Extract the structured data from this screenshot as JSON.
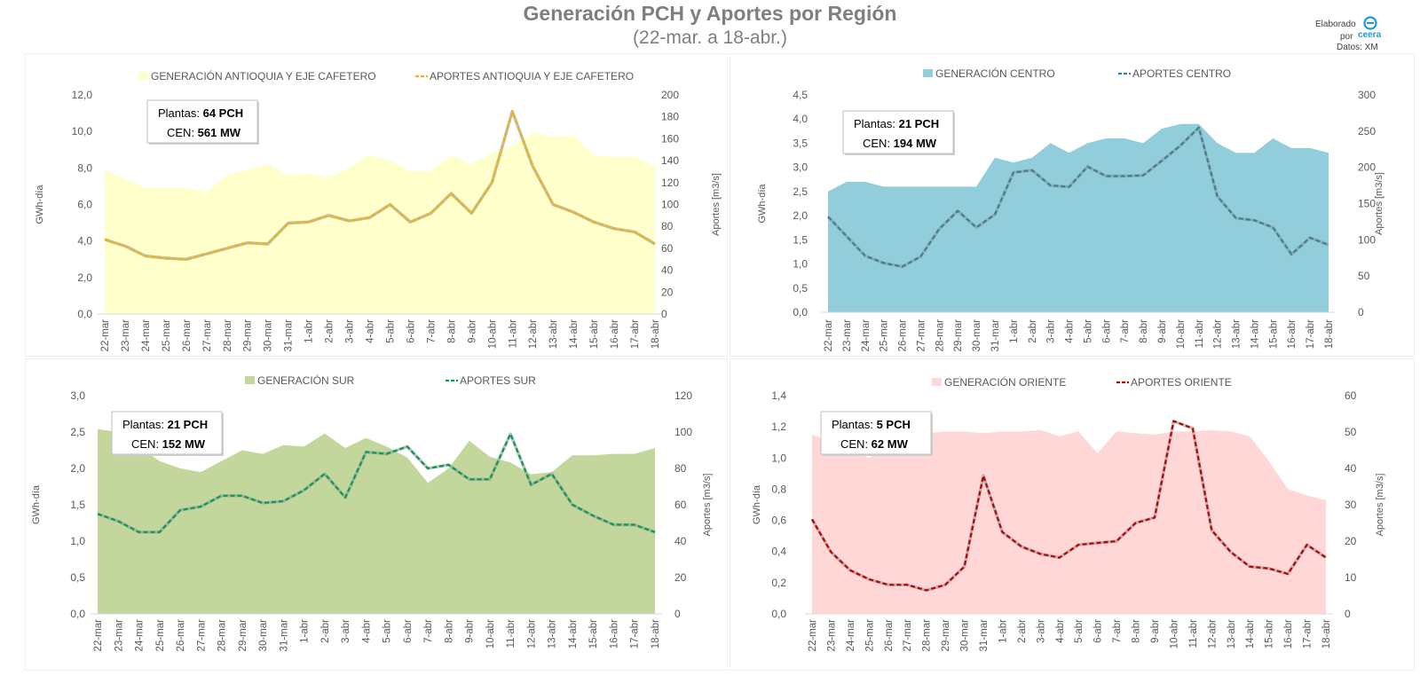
{
  "header": {
    "title": "Generación PCH y Aportes por Región",
    "subtitle": "(22-mar. a 18-abr.)",
    "credit_line1": "Elaborado",
    "credit_line2": "por",
    "credit_brand": "ceera",
    "credit_line3": "Datos: XM"
  },
  "chart_data": [
    {
      "type": "area",
      "legend_placement": "top",
      "categories": [
        "22-mar",
        "23-mar",
        "24-mar",
        "25-mar",
        "26-mar",
        "27-mar",
        "28-mar",
        "29-mar",
        "30-mar",
        "31-mar",
        "1-abr",
        "2-abr",
        "3-abr",
        "4-abr",
        "5-abr",
        "6-abr",
        "7-abr",
        "8-abr",
        "9-abr",
        "10-abr",
        "11-abr",
        "12-abr",
        "13-abr",
        "14-abr",
        "15-abr",
        "16-abr",
        "17-abr",
        "18-abr"
      ],
      "ylabel": "GWh-día",
      "y2label": "Aportes [m3/s]",
      "ylim": [
        0,
        12
      ],
      "y2lim": [
        0,
        200
      ],
      "yticks": [
        "0,0",
        "2,0",
        "4,0",
        "6,0",
        "8,0",
        "10,0",
        "12,0"
      ],
      "y2ticks": [
        "0",
        "20",
        "40",
        "60",
        "80",
        "100",
        "120",
        "140",
        "160",
        "180",
        "200"
      ],
      "grid": false,
      "plants_label": "Plantas:",
      "plants_value": "64 PCH",
      "cen_label": "CEN:",
      "cen_value": "561 MW",
      "series": [
        {
          "name": "GENERACIÓN ANTIOQUIA Y EJE CAFETERO",
          "kind": "area",
          "axis": "left",
          "color": "#ffffcc",
          "values": [
            7.9,
            7.4,
            6.9,
            6.9,
            6.9,
            6.7,
            7.6,
            7.9,
            8.2,
            7.6,
            7.7,
            7.5,
            8.0,
            8.7,
            8.4,
            7.8,
            7.8,
            8.7,
            8.2,
            8.8,
            9.2,
            9.9,
            9.7,
            9.8,
            8.7,
            8.6,
            8.6,
            8.1
          ]
        },
        {
          "name": "APORTES ANTIOQUIA Y EJE CAFETERO",
          "kind": "line",
          "axis": "right",
          "color": "#f2b705",
          "values": [
            68,
            62,
            53,
            51,
            50,
            55,
            60,
            65,
            64,
            83,
            84,
            90,
            85,
            88,
            100,
            84,
            92,
            110,
            92,
            120,
            185,
            135,
            100,
            93,
            84,
            78,
            75,
            64
          ]
        }
      ]
    },
    {
      "type": "area",
      "legend_placement": "top",
      "categories": [
        "22-mar",
        "23-mar",
        "24-mar",
        "25-mar",
        "26-mar",
        "27-mar",
        "28-mar",
        "29-mar",
        "30-mar",
        "31-mar",
        "1-abr",
        "2-abr",
        "3-abr",
        "4-abr",
        "5-abr",
        "6-abr",
        "7-abr",
        "8-abr",
        "9-abr",
        "10-abr",
        "11-abr",
        "12-abr",
        "13-abr",
        "14-abr",
        "15-abr",
        "16-abr",
        "17-abr",
        "18-abr"
      ],
      "ylabel": "GWh-día",
      "y2label": "Aportes [m3/s]",
      "ylim": [
        0,
        4.5
      ],
      "y2lim": [
        0,
        300
      ],
      "yticks": [
        "0,0",
        "0,5",
        "1,0",
        "1,5",
        "2,0",
        "2,5",
        "3,0",
        "3,5",
        "4,0",
        "4,5"
      ],
      "y2ticks": [
        "0",
        "50",
        "100",
        "150",
        "200",
        "250",
        "300"
      ],
      "grid": false,
      "plants_label": "Plantas:",
      "plants_value": "21 PCH",
      "cen_label": "CEN:",
      "cen_value": "194 MW",
      "series": [
        {
          "name": "GENERACIÓN CENTRO",
          "kind": "area",
          "axis": "left",
          "color": "#92cddc",
          "values": [
            2.5,
            2.7,
            2.7,
            2.6,
            2.6,
            2.6,
            2.6,
            2.6,
            2.6,
            3.2,
            3.1,
            3.2,
            3.5,
            3.3,
            3.5,
            3.6,
            3.6,
            3.5,
            3.8,
            3.9,
            3.9,
            3.5,
            3.3,
            3.3,
            3.6,
            3.4,
            3.4,
            3.3
          ]
        },
        {
          "name": "APORTES CENTRO",
          "kind": "line",
          "axis": "right",
          "color": "#31859c",
          "values": [
            132,
            105,
            78,
            68,
            63,
            77,
            115,
            140,
            117,
            135,
            193,
            196,
            175,
            173,
            201,
            188,
            188,
            189,
            209,
            230,
            255,
            160,
            130,
            127,
            117,
            80,
            103,
            93
          ]
        }
      ]
    },
    {
      "type": "area",
      "legend_placement": "top",
      "categories": [
        "22-mar",
        "23-mar",
        "24-mar",
        "25-mar",
        "26-mar",
        "27-mar",
        "28-mar",
        "29-mar",
        "30-mar",
        "31-mar",
        "1-abr",
        "2-abr",
        "3-abr",
        "4-abr",
        "5-abr",
        "6-abr",
        "7-abr",
        "8-abr",
        "9-abr",
        "10-abr",
        "11-abr",
        "12-abr",
        "13-abr",
        "14-abr",
        "15-abr",
        "16-abr",
        "17-abr",
        "18-abr"
      ],
      "ylabel": "GWh-día",
      "y2label": "Aportes [m3/s]",
      "ylim": [
        0,
        3
      ],
      "y2lim": [
        0,
        120
      ],
      "yticks": [
        "0,0",
        "0,5",
        "1,0",
        "1,5",
        "2,0",
        "2,5",
        "3,0"
      ],
      "y2ticks": [
        "0",
        "20",
        "40",
        "60",
        "80",
        "100",
        "120"
      ],
      "grid": false,
      "plants_label": "Plantas:",
      "plants_value": "21 PCH",
      "cen_label": "CEN:",
      "cen_value": "152 MW",
      "series": [
        {
          "name": "GENERACIÓN SUR",
          "kind": "area",
          "axis": "left",
          "color": "#c3d69b",
          "values": [
            2.54,
            2.5,
            2.3,
            2.1,
            2.0,
            1.95,
            2.1,
            2.25,
            2.2,
            2.32,
            2.3,
            2.48,
            2.28,
            2.42,
            2.3,
            2.15,
            1.8,
            2.0,
            2.38,
            2.16,
            2.08,
            1.92,
            1.95,
            2.18,
            2.18,
            2.2,
            2.2,
            2.28
          ]
        },
        {
          "name": "APORTES SUR",
          "kind": "line",
          "axis": "right",
          "color": "#00a050",
          "values": [
            55,
            51,
            45,
            45,
            57,
            59,
            65,
            65,
            61,
            62,
            68,
            77,
            64,
            89,
            88,
            92,
            80,
            82,
            74,
            74,
            99,
            71,
            77,
            60,
            54,
            49,
            49,
            45
          ]
        }
      ]
    },
    {
      "type": "area",
      "legend_placement": "top",
      "categories": [
        "22-mar",
        "23-mar",
        "24-mar",
        "25-mar",
        "26-mar",
        "27-mar",
        "28-mar",
        "29-mar",
        "30-mar",
        "31-mar",
        "1-abr",
        "2-abr",
        "3-abr",
        "4-abr",
        "5-abr",
        "6-abr",
        "7-abr",
        "8-abr",
        "9-abr",
        "10-abr",
        "11-abr",
        "12-abr",
        "13-abr",
        "14-abr",
        "15-abr",
        "16-abr",
        "17-abr",
        "18-abr"
      ],
      "ylabel": "GWh-día",
      "y2label": "Aportes [m3/s]",
      "ylim": [
        0,
        1.4
      ],
      "y2lim": [
        0,
        60
      ],
      "yticks": [
        "0,0",
        "0,2",
        "0,4",
        "0,6",
        "0,8",
        "1,0",
        "1,2",
        "1,4"
      ],
      "y2ticks": [
        "0",
        "10",
        "20",
        "30",
        "40",
        "50",
        "60"
      ],
      "grid": false,
      "plants_label": "Plantas:",
      "plants_value": "5 PCH",
      "cen_label": "CEN:",
      "cen_value": "62 MW",
      "series": [
        {
          "name": "GENERACIÓN ORIENTE",
          "kind": "area",
          "axis": "left",
          "color": "#ffd7d7",
          "values": [
            1.15,
            1.1,
            1.05,
            1.0,
            1.1,
            1.15,
            1.16,
            1.17,
            1.17,
            1.16,
            1.17,
            1.17,
            1.18,
            1.14,
            1.17,
            1.03,
            1.17,
            1.16,
            1.15,
            1.17,
            1.17,
            1.18,
            1.17,
            1.14,
            0.98,
            0.8,
            0.76,
            0.73
          ]
        },
        {
          "name": "APORTES ORIENTE",
          "kind": "line",
          "axis": "right",
          "color": "#c00000",
          "values": [
            26,
            17,
            12,
            9.5,
            8,
            8,
            6.5,
            8,
            13,
            38,
            22.5,
            18.5,
            16.5,
            15.5,
            19,
            19.5,
            20,
            25,
            26.5,
            53,
            51,
            23,
            17,
            13,
            12.5,
            11,
            19,
            15.5
          ]
        }
      ]
    }
  ]
}
